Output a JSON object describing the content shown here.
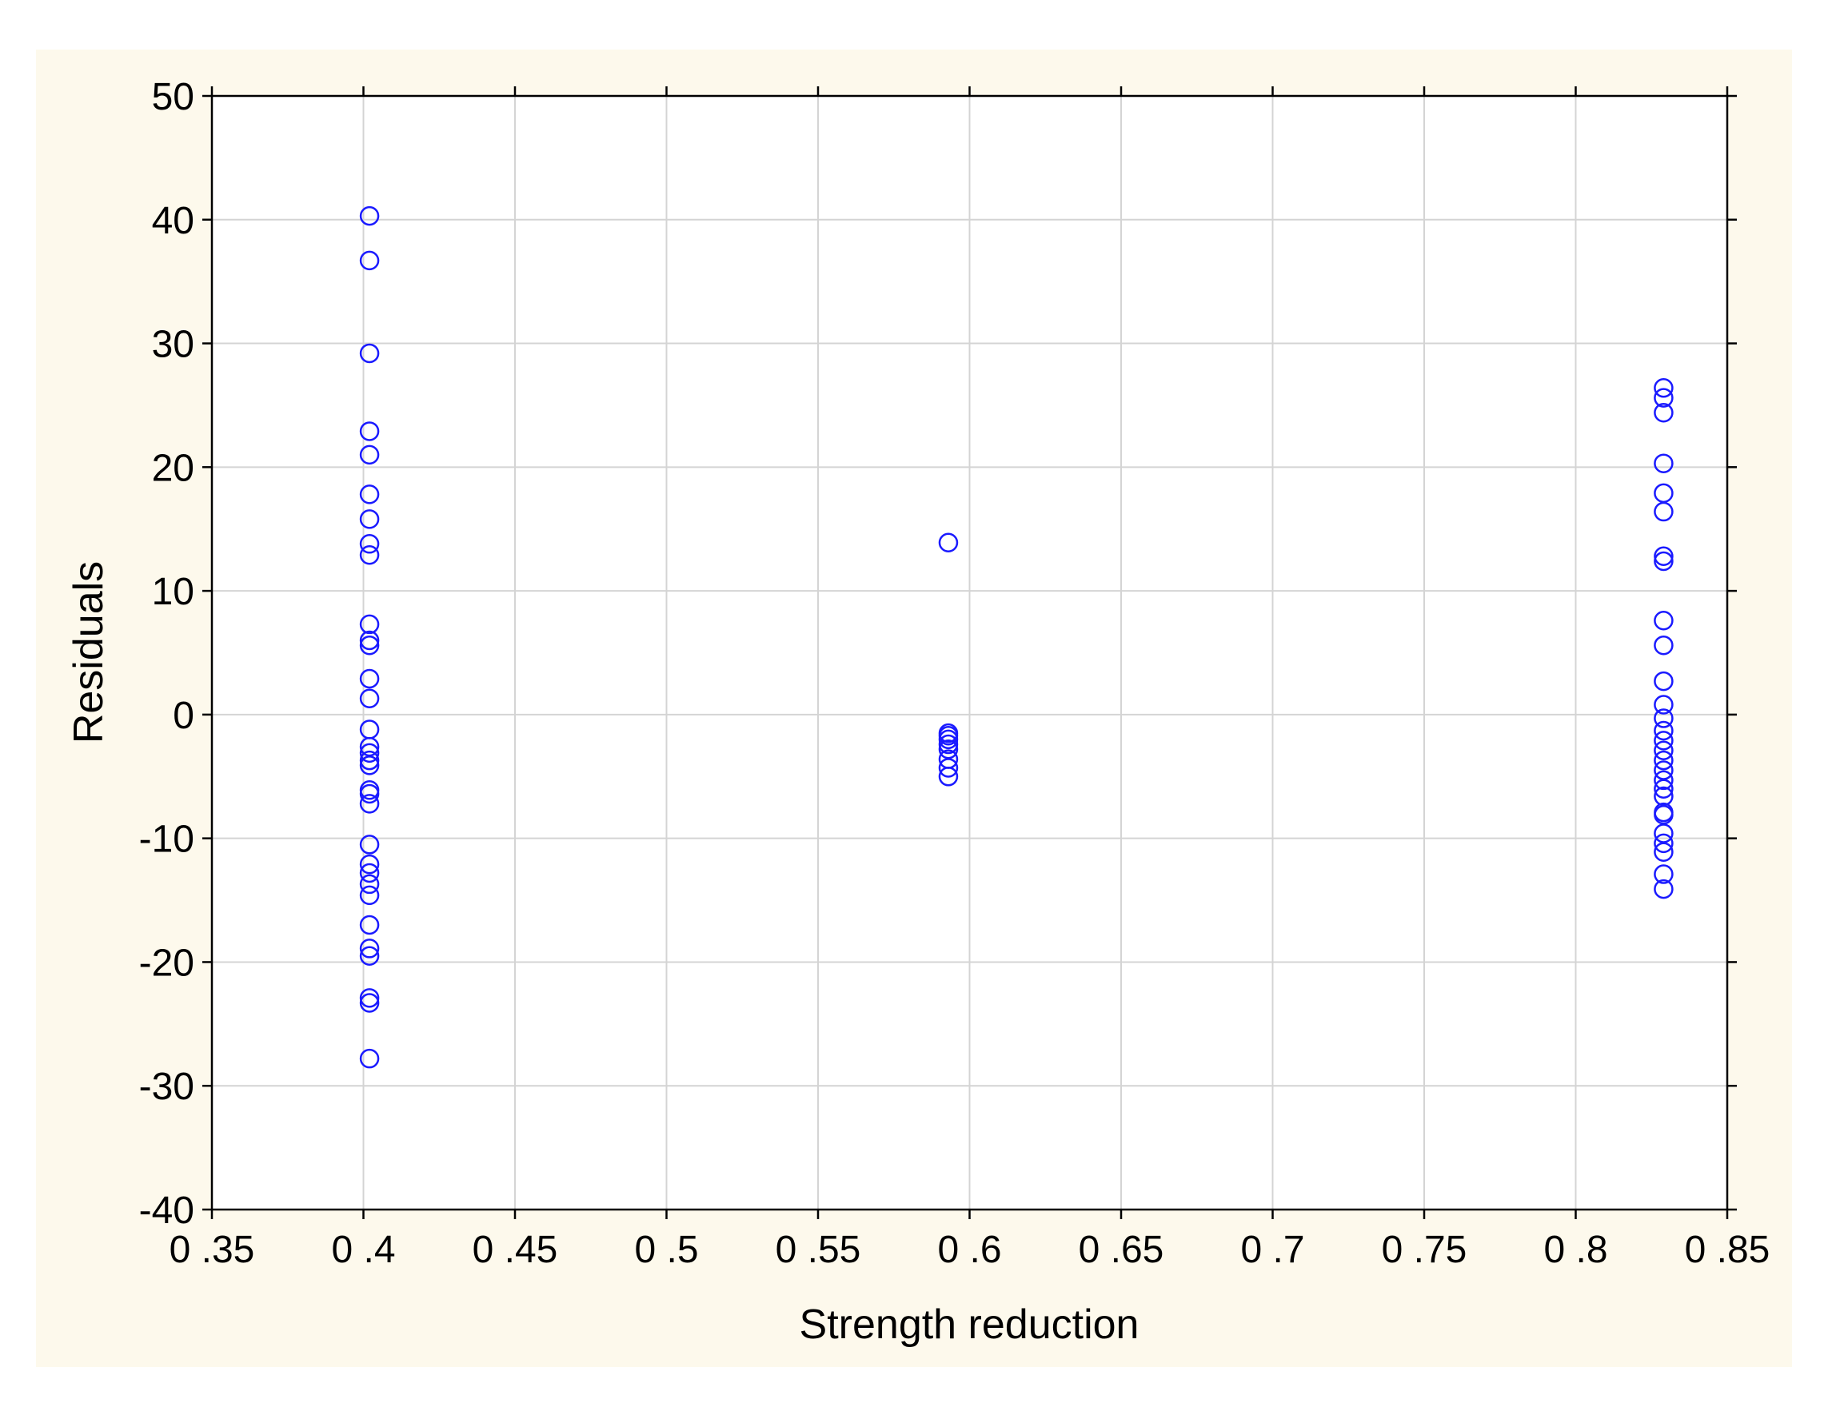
{
  "chart_data": {
    "type": "scatter",
    "xlabel": "Strength reduction",
    "ylabel": "Residuals",
    "xlim": [
      0.35,
      0.85
    ],
    "ylim": [
      -40,
      50
    ],
    "xticks": [
      0.35,
      0.4,
      0.45,
      0.5,
      0.55,
      0.6,
      0.65,
      0.7,
      0.75,
      0.8,
      0.85
    ],
    "xtick_labels": [
      "0 .35",
      "0 .4",
      "0 .45",
      "0 .5",
      "0 .55",
      "0 .6",
      "0 .65",
      "0 .7",
      "0 .75",
      "0 .8",
      "0 .85"
    ],
    "yticks": [
      -40,
      -30,
      -20,
      -10,
      0,
      10,
      20,
      30,
      40,
      50
    ],
    "ytick_labels": [
      "-40",
      "-30",
      "-20",
      "-10",
      "0",
      "10",
      "20",
      "30",
      "40",
      "50"
    ],
    "grid": true,
    "marker": "open-circle",
    "color": "#1a1aff",
    "series": [
      {
        "x": 0.402,
        "y": [
          40.3,
          36.7,
          29.2,
          22.9,
          21.0,
          17.8,
          15.8,
          13.8,
          12.9,
          7.3,
          6.0,
          5.6,
          2.9,
          1.3,
          -1.2,
          -2.6,
          -3.1,
          -3.7,
          -4.1,
          -6.1,
          -6.4,
          -7.2,
          -10.5,
          -12.1,
          -12.8,
          -13.7,
          -14.6,
          -17.0,
          -18.9,
          -19.5,
          -22.9,
          -23.3,
          -27.8
        ]
      },
      {
        "x": 0.593,
        "y": [
          13.9,
          -1.5,
          -1.7,
          -2.0,
          -2.4,
          -2.8,
          -3.6,
          -4.3,
          -5.0
        ]
      },
      {
        "x": 0.829,
        "y": [
          26.4,
          25.6,
          24.4,
          20.3,
          17.9,
          16.4,
          12.8,
          12.4,
          7.6,
          5.6,
          2.7,
          0.8,
          -0.3,
          -1.3,
          -2.1,
          -2.9,
          -3.7,
          -4.5,
          -5.3,
          -6.0,
          -6.6,
          -7.9,
          -8.1,
          -9.6,
          -10.4,
          -11.1,
          -12.9,
          -14.1
        ]
      }
    ]
  }
}
